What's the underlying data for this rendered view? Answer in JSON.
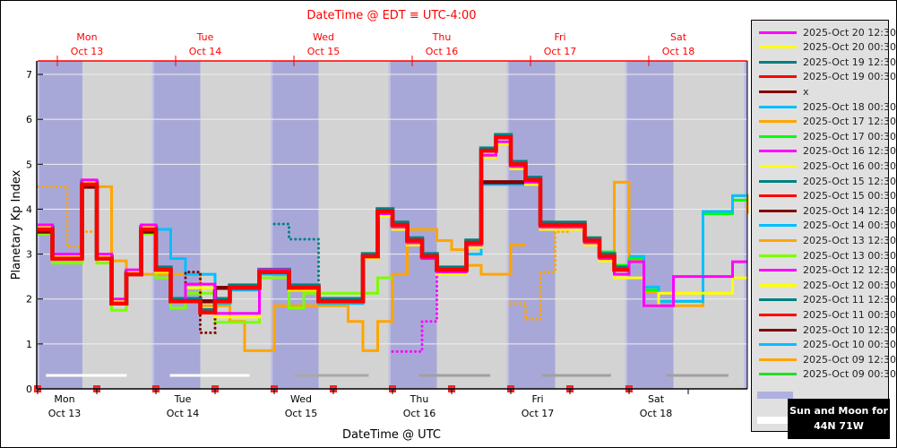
{
  "chart_data": {
    "type": "line",
    "title": "DateTime @ EDT ≡ UTC-4:00",
    "xlabel": "DateTime @ UTC",
    "ylabel": "Planetary Kp Index",
    "x_range": [
      "2025-10-13T00:00Z",
      "2025-10-19T00:00Z"
    ],
    "ylim": [
      0,
      7.3
    ],
    "yticks": [
      "0",
      "1",
      "2",
      "3",
      "4",
      "5",
      "6",
      "7"
    ],
    "grid": true,
    "step_hours": 3,
    "legend_position": "right",
    "top_axis_ticks": [
      {
        "time": "2025-10-13T04:00Z",
        "day": "Mon",
        "date": "Oct 13"
      },
      {
        "time": "2025-10-14T04:00Z",
        "day": "Tue",
        "date": "Oct 14"
      },
      {
        "time": "2025-10-15T04:00Z",
        "day": "Wed",
        "date": "Oct 15"
      },
      {
        "time": "2025-10-16T04:00Z",
        "day": "Thu",
        "date": "Oct 16"
      },
      {
        "time": "2025-10-17T04:00Z",
        "day": "Fri",
        "date": "Oct 17"
      },
      {
        "time": "2025-10-18T04:00Z",
        "day": "Sat",
        "date": "Oct 18"
      }
    ],
    "bottom_axis_ticks": [
      {
        "time": "2025-10-13T00:00Z",
        "day": "Mon",
        "date": "Oct 13"
      },
      {
        "time": "2025-10-14T00:00Z",
        "day": "Tue",
        "date": "Oct 14"
      },
      {
        "time": "2025-10-15T00:00Z",
        "day": "Wed",
        "date": "Oct 15"
      },
      {
        "time": "2025-10-16T00:00Z",
        "day": "Thu",
        "date": "Oct 16"
      },
      {
        "time": "2025-10-17T00:00Z",
        "day": "Fri",
        "date": "Oct 17"
      },
      {
        "time": "2025-10-18T00:00Z",
        "day": "Sat",
        "date": "Oct 18"
      }
    ],
    "night_intervals": [
      [
        "2025-10-13T00:00Z",
        "2025-10-13T09:05Z"
      ],
      [
        "2025-10-13T23:15Z",
        "2025-10-14T09:00Z"
      ],
      [
        "2025-10-14T23:20Z",
        "2025-10-15T09:00Z"
      ],
      [
        "2025-10-15T23:15Z",
        "2025-10-16T09:00Z"
      ],
      [
        "2025-10-16T23:15Z",
        "2025-10-17T09:00Z"
      ],
      [
        "2025-10-17T23:15Z",
        "2025-10-18T09:00Z"
      ],
      [
        "2025-10-18T23:20Z",
        "2025-10-19T00:00Z"
      ]
    ],
    "moon_intervals": [
      {
        "from": "2025-10-13T01:40Z",
        "to": "2025-10-13T18:05Z",
        "color": "#ffffff"
      },
      {
        "from": "2025-10-14T02:50Z",
        "to": "2025-10-14T19:00Z",
        "color": "#ffffff"
      },
      {
        "from": "2025-10-15T04:00Z",
        "to": "2025-10-15T19:10Z",
        "color": "#a8a8a8"
      },
      {
        "from": "2025-10-16T05:20Z",
        "to": "2025-10-16T19:50Z",
        "color": "#a0a0a0"
      },
      {
        "from": "2025-10-17T06:20Z",
        "to": "2025-10-17T20:20Z",
        "color": "#a0a0a0"
      },
      {
        "from": "2025-10-18T07:30Z",
        "to": "2025-10-18T20:10Z",
        "color": "#a0a0a0"
      }
    ],
    "markers": [
      "2025-10-13T00:00Z",
      "2025-10-13T12:00Z",
      "2025-10-14T00:00Z",
      "2025-10-14T12:00Z",
      "2025-10-15T00:00Z",
      "2025-10-15T12:00Z",
      "2025-10-16T00:00Z",
      "2025-10-16T12:00Z",
      "2025-10-17T00:00Z",
      "2025-10-17T12:00Z",
      "2025-10-18T00:00Z"
    ],
    "series": [
      {
        "name": "2025-Oct 13 12:30",
        "color": "#ffa500",
        "style": "dotted",
        "start": "2025-10-13T00:00Z",
        "values": [
          4.5,
          4.5,
          3.17,
          3.5
        ]
      },
      {
        "name": "2025-Oct 13 12:30",
        "color": "#ffa500",
        "style": "solid",
        "start": "2025-10-13T09:00Z",
        "values": [
          4.5,
          4.5,
          2.85,
          2.55,
          2.55,
          2.55,
          2.55,
          2.55,
          1.85,
          1.85,
          1.5,
          0.85,
          0.85,
          1.85,
          1.85,
          1.85,
          1.85,
          1.85,
          1.5,
          0.85,
          1.5,
          2.55,
          3.55,
          3.55,
          3.3,
          3.1,
          2.75,
          2.55,
          2.55,
          3.2
        ]
      },
      {
        "name": "2025-Oct 13 00:30",
        "color": "#7cfc00",
        "style": "solid",
        "start": "2025-10-13T00:00Z",
        "values": [
          3.45,
          2.8,
          2.8,
          4.5,
          2.8,
          1.75,
          2.55,
          3.45,
          2.47,
          1.8,
          2.13,
          2.13,
          1.48,
          1.48,
          1.48,
          2.47,
          2.47,
          1.8,
          2.13,
          2.13,
          2.13,
          2.13,
          2.13,
          2.47
        ]
      },
      {
        "name": "2025-Oct 14 00:30",
        "color": "#00bfff",
        "style": "solid",
        "start": "2025-10-14T00:00Z",
        "values": [
          3.55,
          2.9,
          2.55,
          2.55,
          1.9,
          2.2,
          2.2,
          2.55,
          2.55,
          2.3,
          2.3,
          1.9,
          1.9,
          1.9,
          3.0,
          3.85,
          3.6,
          3.2,
          2.9,
          2.55,
          2.55,
          3.0,
          4.55,
          4.55,
          4.55
        ]
      },
      {
        "name": "2025-Oct 14 12:30",
        "color": "#800000",
        "style": "dotted",
        "start": "2025-10-14T00:00Z",
        "values": [
          2.6,
          2.0,
          2.6,
          1.25,
          2.0
        ]
      },
      {
        "name": "2025-Oct 15 12:30",
        "color": "#008080",
        "style": "dotted",
        "start": "2025-10-15T00:00Z",
        "values": [
          3.67,
          3.33,
          3.33,
          2.0
        ]
      },
      {
        "name": "2025-Oct 16 12:30",
        "color": "#ff00ff",
        "style": "dotted",
        "start": "2025-10-16T00:00Z",
        "values": [
          0.83,
          0.83,
          1.5,
          2.55
        ]
      },
      {
        "name": "2025-Oct 17 12:30",
        "color": "#ffa500",
        "style": "dotted",
        "start": "2025-10-17T00:00Z",
        "values": [
          1.9,
          1.55,
          2.6,
          3.5
        ]
      },
      {
        "name": "2025-Oct 17 12:30",
        "color": "#ffa500",
        "style": "solid",
        "start": "2025-10-17T03:00Z",
        "values": [
          4.65,
          3.55,
          3.55,
          3.55,
          3.25,
          2.9,
          4.6,
          2.85,
          2.15,
          1.85,
          1.85,
          1.85,
          3.95,
          3.95,
          4.3,
          3.9
        ]
      },
      {
        "name": "2025-Oct 17 00:30",
        "color": "#00ff00",
        "style": "solid",
        "start": "2025-10-17T03:00Z",
        "values": [
          4.6,
          3.65,
          3.65,
          3.65,
          3.35,
          3.05,
          2.75,
          2.9,
          2.2,
          1.95,
          1.95,
          1.95,
          3.9,
          3.9,
          4.2,
          4.2
        ]
      },
      {
        "name": "2025-Oct 18 00:30",
        "color": "#00bfff",
        "style": "solid",
        "start": "2025-10-18T00:00Z",
        "values": [
          2.95,
          2.27,
          1.95,
          1.95,
          1.95,
          3.95,
          3.95,
          4.3
        ]
      },
      {
        "name": "x",
        "color": "#800000",
        "style": "thick",
        "start": "2025-10-13T00:00Z",
        "values": [
          3.5,
          2.95,
          2.95,
          4.5,
          2.95,
          1.9,
          2.55,
          3.5,
          2.65,
          1.95,
          1.95,
          1.95,
          2.25,
          2.25,
          2.25,
          2.6,
          2.6,
          2.25,
          2.25,
          1.95,
          1.95,
          1.95,
          2.95,
          3.95,
          3.65,
          3.3,
          2.95,
          2.65,
          2.65,
          3.25,
          4.6,
          4.6,
          4.6
        ]
      },
      {
        "name": "2025-Oct 19 12:30",
        "color": "#008080",
        "style": "thick",
        "start": "2025-10-13T00:00Z",
        "values": [
          3.6,
          2.95,
          2.95,
          4.6,
          2.95,
          1.95,
          2.6,
          3.6,
          2.7,
          2.0,
          2.0,
          1.75,
          2.0,
          2.3,
          2.3,
          2.65,
          2.65,
          2.3,
          2.3,
          2.0,
          2.0,
          2.0,
          3.0,
          4.0,
          3.7,
          3.35,
          3.0,
          2.7,
          2.7,
          3.3,
          5.35,
          5.65,
          5.05,
          4.7,
          3.7,
          3.7,
          3.7,
          3.35,
          3.0,
          2.7
        ]
      },
      {
        "name": "2025-Oct 20 00:30",
        "color": "#ffff00",
        "style": "solid",
        "start": "2025-10-13T00:00Z",
        "values": [
          3.6,
          2.95,
          2.95,
          4.6,
          2.95,
          1.95,
          2.6,
          3.6,
          2.6,
          1.95,
          2.25,
          2.25,
          1.6,
          1.6,
          1.6,
          2.6,
          2.6,
          2.2,
          2.2,
          1.95,
          1.95,
          1.95,
          2.9,
          3.85,
          3.55,
          3.2,
          2.9,
          2.55,
          2.55,
          3.15,
          5.15,
          5.45,
          4.9,
          4.55,
          3.55,
          3.55,
          3.55,
          3.2,
          2.85,
          2.47,
          2.47,
          1.85,
          2.13,
          2.13,
          2.13,
          2.13,
          2.13,
          2.47
        ]
      },
      {
        "name": "2025-Oct 20 12:30",
        "color": "#ff00ff",
        "style": "solid",
        "start": "2025-10-13T00:00Z",
        "values": [
          3.65,
          3.0,
          3.0,
          4.65,
          3.0,
          2.0,
          2.65,
          3.65,
          2.65,
          1.95,
          2.33,
          2.33,
          1.68,
          1.68,
          1.68,
          2.65,
          2.65,
          2.25,
          2.25,
          1.95,
          1.95,
          1.95,
          2.95,
          3.9,
          3.6,
          3.25,
          2.9,
          2.6,
          2.6,
          3.2,
          5.2,
          5.5,
          4.95,
          4.6,
          3.6,
          3.6,
          3.6,
          3.25,
          2.9,
          2.55,
          2.83,
          1.85,
          1.85,
          2.5,
          2.5,
          2.5,
          2.5,
          2.83
        ]
      },
      {
        "name": "2025-Oct 19 00:30",
        "color": "#ff0000",
        "style": "thick",
        "start": "2025-10-13T00:00Z",
        "values": [
          3.55,
          2.9,
          2.9,
          4.55,
          2.9,
          1.9,
          2.55,
          3.55,
          2.65,
          1.95,
          1.95,
          1.7,
          1.95,
          2.25,
          2.25,
          2.6,
          2.6,
          2.25,
          2.25,
          1.95,
          1.95,
          1.95,
          2.95,
          3.95,
          3.65,
          3.3,
          2.95,
          2.65,
          2.65,
          3.25,
          5.3,
          5.6,
          5.0,
          4.65,
          3.65,
          3.65,
          3.65,
          3.3,
          2.95,
          2.65
        ]
      }
    ]
  },
  "legend": {
    "entries": [
      {
        "label": "2025-Oct 20 12:30",
        "color": "#ff00ff"
      },
      {
        "label": "2025-Oct 20 00:30",
        "color": "#ffff00"
      },
      {
        "label": "2025-Oct 19 12:30",
        "color": "#008080"
      },
      {
        "label": "2025-Oct 19 00:30",
        "color": "#ff0000"
      },
      {
        "label": "x",
        "color": "#800000"
      },
      {
        "label": "2025-Oct 18 00:30",
        "color": "#00bfff"
      },
      {
        "label": "2025-Oct 17 12:30",
        "color": "#ffa500"
      },
      {
        "label": "2025-Oct 17 00:30",
        "color": "#00ff00"
      },
      {
        "label": "2025-Oct 16 12:30",
        "color": "#ff00ff"
      },
      {
        "label": "2025-Oct 16 00:30",
        "color": "#ffff00"
      },
      {
        "label": "2025-Oct 15 12:30",
        "color": "#008080"
      },
      {
        "label": "2025-Oct 15 00:30",
        "color": "#ff0000"
      },
      {
        "label": "2025-Oct 14 12:30",
        "color": "#800000"
      },
      {
        "label": "2025-Oct 14 00:30",
        "color": "#00bfff"
      },
      {
        "label": "2025-Oct 13 12:30",
        "color": "#ffa500"
      },
      {
        "label": "2025-Oct 13 00:30",
        "color": "#7cfc00"
      },
      {
        "label": "2025-Oct 12 12:30",
        "color": "#ff00ff"
      },
      {
        "label": "2025-Oct 12 00:30",
        "color": "#ffff00"
      },
      {
        "label": "2025-Oct 11 12:30",
        "color": "#008080"
      },
      {
        "label": "2025-Oct 11 00:30",
        "color": "#ff0000"
      },
      {
        "label": "2025-Oct 10 12:30",
        "color": "#800000"
      },
      {
        "label": "2025-Oct 10 00:30",
        "color": "#00bfff"
      },
      {
        "label": "2025-Oct 09 12:30",
        "color": "#ffa500"
      },
      {
        "label": "2025-Oct 09 00:30",
        "color": "#22dd22"
      }
    ],
    "sun_color": "#b0b0e0",
    "moon_color": "#ffffff",
    "sun_moon_line1": "Sun and Moon for",
    "sun_moon_line2": "44N 71W"
  },
  "colors": {
    "plot_bg": "#d3d3d3",
    "night": "#a8a8d8",
    "title": "#ff0000",
    "top_axis": "#ff0000"
  }
}
